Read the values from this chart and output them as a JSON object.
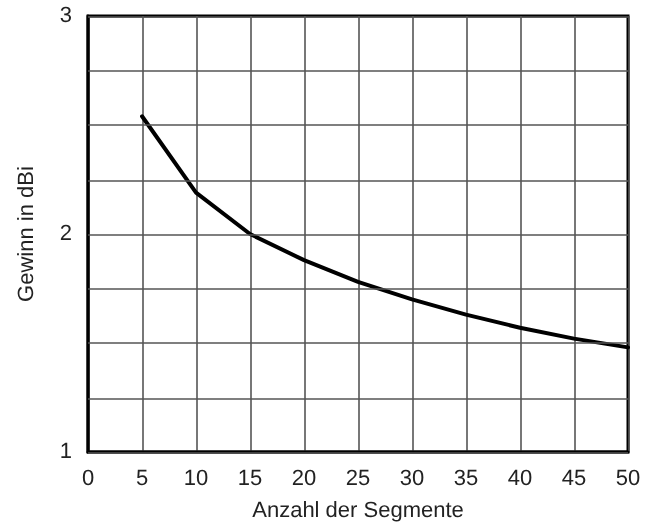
{
  "chart_data": {
    "type": "line",
    "xlabel": "Anzahl der Segmente",
    "ylabel": "Gewinn in dBi",
    "x": [
      5,
      10,
      15,
      20,
      25,
      30,
      35,
      40,
      45,
      50
    ],
    "series": [
      {
        "color": "#000000",
        "values": [
          2.54,
          2.19,
          2.0,
          1.88,
          1.78,
          1.7,
          1.63,
          1.57,
          1.52,
          1.48
        ]
      }
    ],
    "xlim": [
      0,
      50
    ],
    "xticks": [
      0,
      5,
      10,
      15,
      20,
      25,
      30,
      35,
      40,
      45,
      50
    ],
    "ylim": [
      1,
      3
    ],
    "yticks": [
      1,
      {
        "value": 1.25,
        "label": null
      },
      {
        "value": 1.5,
        "label": null
      },
      {
        "value": 1.75,
        "label": null
      },
      2,
      {
        "value": 2.25,
        "label": null
      },
      {
        "value": 2.5,
        "label": null
      },
      {
        "value": 2.75,
        "label": null
      },
      3
    ],
    "grid": true,
    "marker": "none",
    "line_style": "solid"
  }
}
